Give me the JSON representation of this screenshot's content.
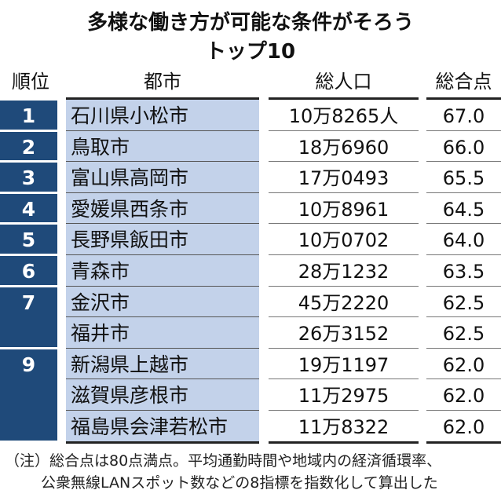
{
  "title": {
    "line1": "多様な働き方が可能な条件がそろう",
    "line2": "トップ10"
  },
  "headers": {
    "rank": "順位",
    "city": "都市",
    "population": "総人口",
    "score": "総合点"
  },
  "colors": {
    "rank_bg": "#1f4a7a",
    "city_bg": "#c3d2ea"
  },
  "ranks": [
    {
      "rank": "1",
      "rows": 1
    },
    {
      "rank": "2",
      "rows": 1
    },
    {
      "rank": "3",
      "rows": 1
    },
    {
      "rank": "4",
      "rows": 1
    },
    {
      "rank": "5",
      "rows": 1
    },
    {
      "rank": "6",
      "rows": 1
    },
    {
      "rank": "7",
      "rows": 2
    },
    {
      "rank": "9",
      "rows": 3
    }
  ],
  "rows": [
    {
      "city": "石川県小松市",
      "population": "10万8265人",
      "score": "67.0"
    },
    {
      "city": "鳥取市",
      "population": "18万6960",
      "score": "66.0"
    },
    {
      "city": "富山県高岡市",
      "population": "17万0493",
      "score": "65.5"
    },
    {
      "city": "愛媛県西条市",
      "population": "10万8961",
      "score": "64.5"
    },
    {
      "city": "長野県飯田市",
      "population": "10万0702",
      "score": "64.0"
    },
    {
      "city": "青森市",
      "population": "28万1232",
      "score": "63.5"
    },
    {
      "city": "金沢市",
      "population": "45万2220",
      "score": "62.5"
    },
    {
      "city": "福井市",
      "population": "26万3152",
      "score": "62.5"
    },
    {
      "city": "新潟県上越市",
      "population": "19万1197",
      "score": "62.0"
    },
    {
      "city": "滋賀県彦根市",
      "population": "11万2975",
      "score": "62.0"
    },
    {
      "city": "福島県会津若松市",
      "population": "11万8322",
      "score": "62.0"
    }
  ],
  "note": {
    "line1": "（注）総合点は80点満点。平均通勤時間や地域内の経済循環率、",
    "line2": "公衆無線LANスポット数などの8指標を指数化して算出した"
  }
}
